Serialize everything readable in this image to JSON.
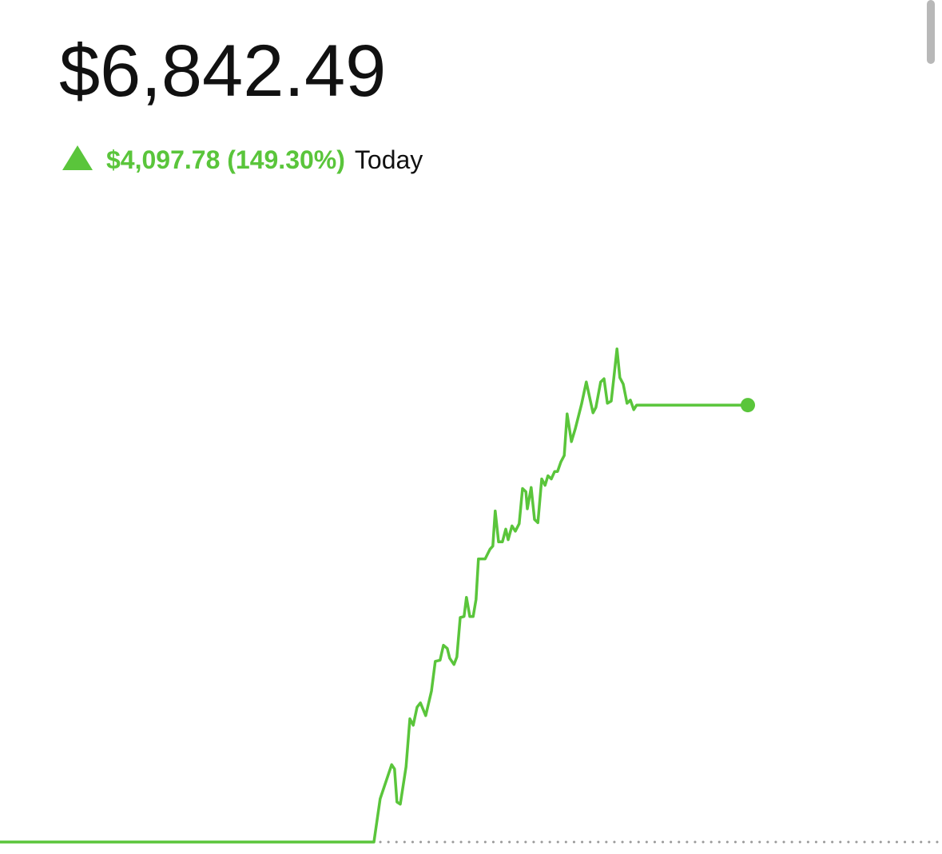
{
  "header": {
    "value": "$6,842.49",
    "change": "$4,097.78 (149.30%)",
    "period": "Today"
  },
  "chart_data": {
    "type": "line",
    "color": "#5ac53b",
    "x": [
      0,
      78,
      79.3,
      81.7,
      82.3,
      82.8,
      83.5,
      84.7,
      85.5,
      86.2,
      87,
      87.7,
      88.8,
      90,
      90.8,
      91.8,
      92.5,
      93.3,
      93.8,
      94.7,
      95.3,
      96,
      96.8,
      97.3,
      98,
      98.7,
      99.3,
      99.8,
      101.2,
      102.2,
      102.8,
      103.3,
      104,
      104.8,
      105.5,
      106,
      106.8,
      107.5,
      108.3,
      109,
      109.7,
      110,
      110.8,
      111.5,
      112.2,
      113,
      113.7,
      114.3,
      115,
      115.7,
      116.3,
      117,
      117.7,
      118.3,
      119.2,
      120,
      121.3,
      122.3,
      123.7,
      124.3,
      125.3,
      126,
      126.7,
      127.5,
      128,
      128.7,
      129.3,
      130,
      130.8,
      131.5,
      132.2,
      132.8,
      156
    ],
    "values": [
      2744.71,
      2744.71,
      3150,
      3470,
      3430,
      3120,
      3100,
      3450,
      3900,
      3840,
      4010,
      4050,
      3930,
      4160,
      4440,
      4450,
      4590,
      4560,
      4470,
      4410,
      4480,
      4850,
      4860,
      5040,
      4860,
      4860,
      5020,
      5400,
      5400,
      5490,
      5520,
      5850,
      5560,
      5560,
      5680,
      5580,
      5710,
      5660,
      5730,
      6060,
      6030,
      5870,
      6070,
      5770,
      5740,
      6150,
      6090,
      6180,
      6150,
      6220,
      6220,
      6310,
      6370,
      6760,
      6500,
      6620,
      6850,
      7060,
      6770,
      6820,
      7060,
      7090,
      6860,
      6880,
      7080,
      7370,
      7100,
      7040,
      6860,
      6890,
      6800,
      6842.49,
      6842.49
    ],
    "baseline": 2744.71,
    "xlim": [
      0,
      196.5
    ],
    "ylim": [
      2700,
      7600
    ]
  }
}
